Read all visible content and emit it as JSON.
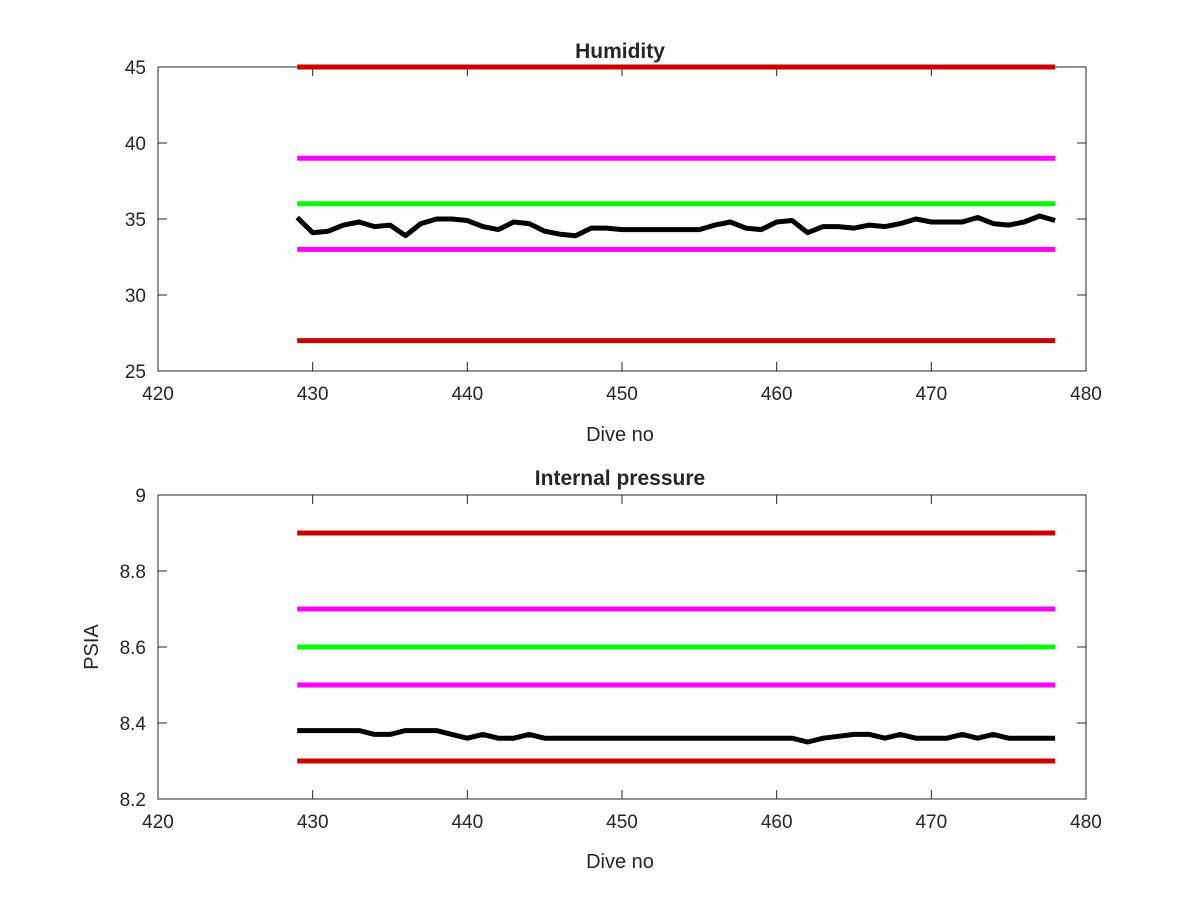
{
  "chart_data": [
    {
      "type": "line",
      "title": "Humidity",
      "xlabel": "Dive no",
      "ylabel": "",
      "xlim": [
        420,
        480
      ],
      "ylim": [
        25,
        45
      ],
      "xticks": [
        "420",
        "430",
        "440",
        "450",
        "460",
        "470",
        "480"
      ],
      "yticks": [
        "25",
        "30",
        "35",
        "40",
        "45"
      ],
      "grid": false,
      "legend": "none",
      "series": [
        {
          "color": "#cc0000",
          "x": [
            429,
            478
          ],
          "values": [
            45,
            45
          ]
        },
        {
          "color": "#ff00ff",
          "x": [
            429,
            478
          ],
          "values": [
            39,
            39
          ]
        },
        {
          "color": "#00ff00",
          "x": [
            429,
            478
          ],
          "values": [
            36,
            36
          ]
        },
        {
          "color": "#ff00ff",
          "x": [
            429,
            478
          ],
          "values": [
            33,
            33
          ]
        },
        {
          "color": "#cc0000",
          "x": [
            429,
            478
          ],
          "values": [
            27,
            27
          ]
        },
        {
          "color": "#000000",
          "x": [
            429,
            430,
            431,
            432,
            433,
            434,
            435,
            436,
            437,
            438,
            439,
            440,
            441,
            442,
            443,
            444,
            445,
            446,
            447,
            448,
            449,
            450,
            451,
            452,
            453,
            454,
            455,
            456,
            457,
            458,
            459,
            460,
            461,
            462,
            463,
            464,
            465,
            466,
            467,
            468,
            469,
            470,
            471,
            472,
            473,
            474,
            475,
            476,
            477,
            478
          ],
          "values": [
            35.1,
            34.1,
            34.2,
            34.6,
            34.8,
            34.5,
            34.6,
            33.9,
            34.7,
            35.0,
            35.0,
            34.9,
            34.5,
            34.3,
            34.8,
            34.7,
            34.2,
            34.0,
            33.9,
            34.4,
            34.4,
            34.3,
            34.3,
            34.3,
            34.3,
            34.3,
            34.3,
            34.6,
            34.8,
            34.4,
            34.3,
            34.8,
            34.9,
            34.1,
            34.5,
            34.5,
            34.4,
            34.6,
            34.5,
            34.7,
            35.0,
            34.8,
            34.8,
            34.8,
            35.1,
            34.7,
            34.6,
            34.8,
            35.2,
            34.9
          ]
        }
      ]
    },
    {
      "type": "line",
      "title": "Internal pressure",
      "xlabel": "Dive no",
      "ylabel": "PSIA",
      "xlim": [
        420,
        480
      ],
      "ylim": [
        8.2,
        9
      ],
      "xticks": [
        "420",
        "430",
        "440",
        "450",
        "460",
        "470",
        "480"
      ],
      "yticks": [
        "8.2",
        "8.4",
        "8.6",
        "8.8",
        "9"
      ],
      "grid": false,
      "legend": "none",
      "series": [
        {
          "color": "#cc0000",
          "x": [
            429,
            478
          ],
          "values": [
            8.9,
            8.9
          ]
        },
        {
          "color": "#ff00ff",
          "x": [
            429,
            478
          ],
          "values": [
            8.7,
            8.7
          ]
        },
        {
          "color": "#00ff00",
          "x": [
            429,
            478
          ],
          "values": [
            8.6,
            8.6
          ]
        },
        {
          "color": "#ff00ff",
          "x": [
            429,
            478
          ],
          "values": [
            8.5,
            8.5
          ]
        },
        {
          "color": "#cc0000",
          "x": [
            429,
            478
          ],
          "values": [
            8.3,
            8.3
          ]
        },
        {
          "color": "#000000",
          "x": [
            429,
            430,
            431,
            432,
            433,
            434,
            435,
            436,
            437,
            438,
            439,
            440,
            441,
            442,
            443,
            444,
            445,
            446,
            447,
            448,
            449,
            450,
            451,
            452,
            453,
            454,
            455,
            456,
            457,
            458,
            459,
            460,
            461,
            462,
            463,
            464,
            465,
            466,
            467,
            468,
            469,
            470,
            471,
            472,
            473,
            474,
            475,
            476,
            477,
            478
          ],
          "values": [
            8.38,
            8.38,
            8.38,
            8.38,
            8.38,
            8.37,
            8.37,
            8.38,
            8.38,
            8.38,
            8.37,
            8.36,
            8.37,
            8.36,
            8.36,
            8.37,
            8.36,
            8.36,
            8.36,
            8.36,
            8.36,
            8.36,
            8.36,
            8.36,
            8.36,
            8.36,
            8.36,
            8.36,
            8.36,
            8.36,
            8.36,
            8.36,
            8.36,
            8.35,
            8.36,
            8.365,
            8.37,
            8.37,
            8.36,
            8.37,
            8.36,
            8.36,
            8.36,
            8.37,
            8.36,
            8.37,
            8.36,
            8.36,
            8.36,
            8.36
          ]
        }
      ]
    }
  ]
}
